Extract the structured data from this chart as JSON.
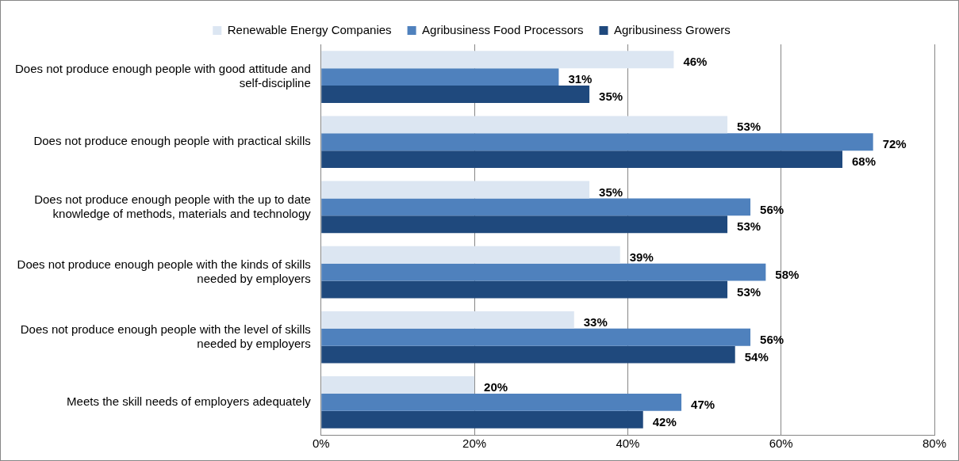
{
  "chart_data": {
    "type": "bar",
    "orientation": "horizontal",
    "categories": [
      "Does not produce enough people with good attitude and self-discipline",
      "Does not produce enough people with practical skills",
      "Does not produce enough people with the up to date knowledge of methods, materials and technology",
      "Does not produce enough people with the kinds of skills needed by employers",
      "Does not produce enough people with the level of skills needed by employers",
      "Meets the skill needs of employers adequately"
    ],
    "series": [
      {
        "name": "Renewable Energy Companies",
        "color": "#dce6f2",
        "values": [
          46,
          53,
          35,
          39,
          33,
          20
        ],
        "value_labels": [
          "46%",
          "53%",
          "35%",
          "39%",
          "33%",
          "20%"
        ]
      },
      {
        "name": "Agribusiness Food Processors",
        "color": "#4f81bd",
        "values": [
          31,
          72,
          56,
          58,
          56,
          47
        ],
        "value_labels": [
          "31%",
          "72%",
          "56%",
          "58%",
          "56%",
          "47%"
        ]
      },
      {
        "name": "Agribusiness Growers",
        "color": "#1f497d",
        "values": [
          35,
          68,
          53,
          53,
          54,
          42
        ],
        "value_labels": [
          "35%",
          "68%",
          "53%",
          "53%",
          "54%",
          "42%"
        ]
      }
    ],
    "xlim": [
      0,
      80
    ],
    "xticks": [
      {
        "value": 0,
        "label": "0%"
      },
      {
        "value": 20,
        "label": "20%"
      },
      {
        "value": 40,
        "label": "40%"
      },
      {
        "value": 60,
        "label": "60%"
      },
      {
        "value": 80,
        "label": "80%"
      }
    ],
    "grid": "x",
    "legend": "top"
  }
}
